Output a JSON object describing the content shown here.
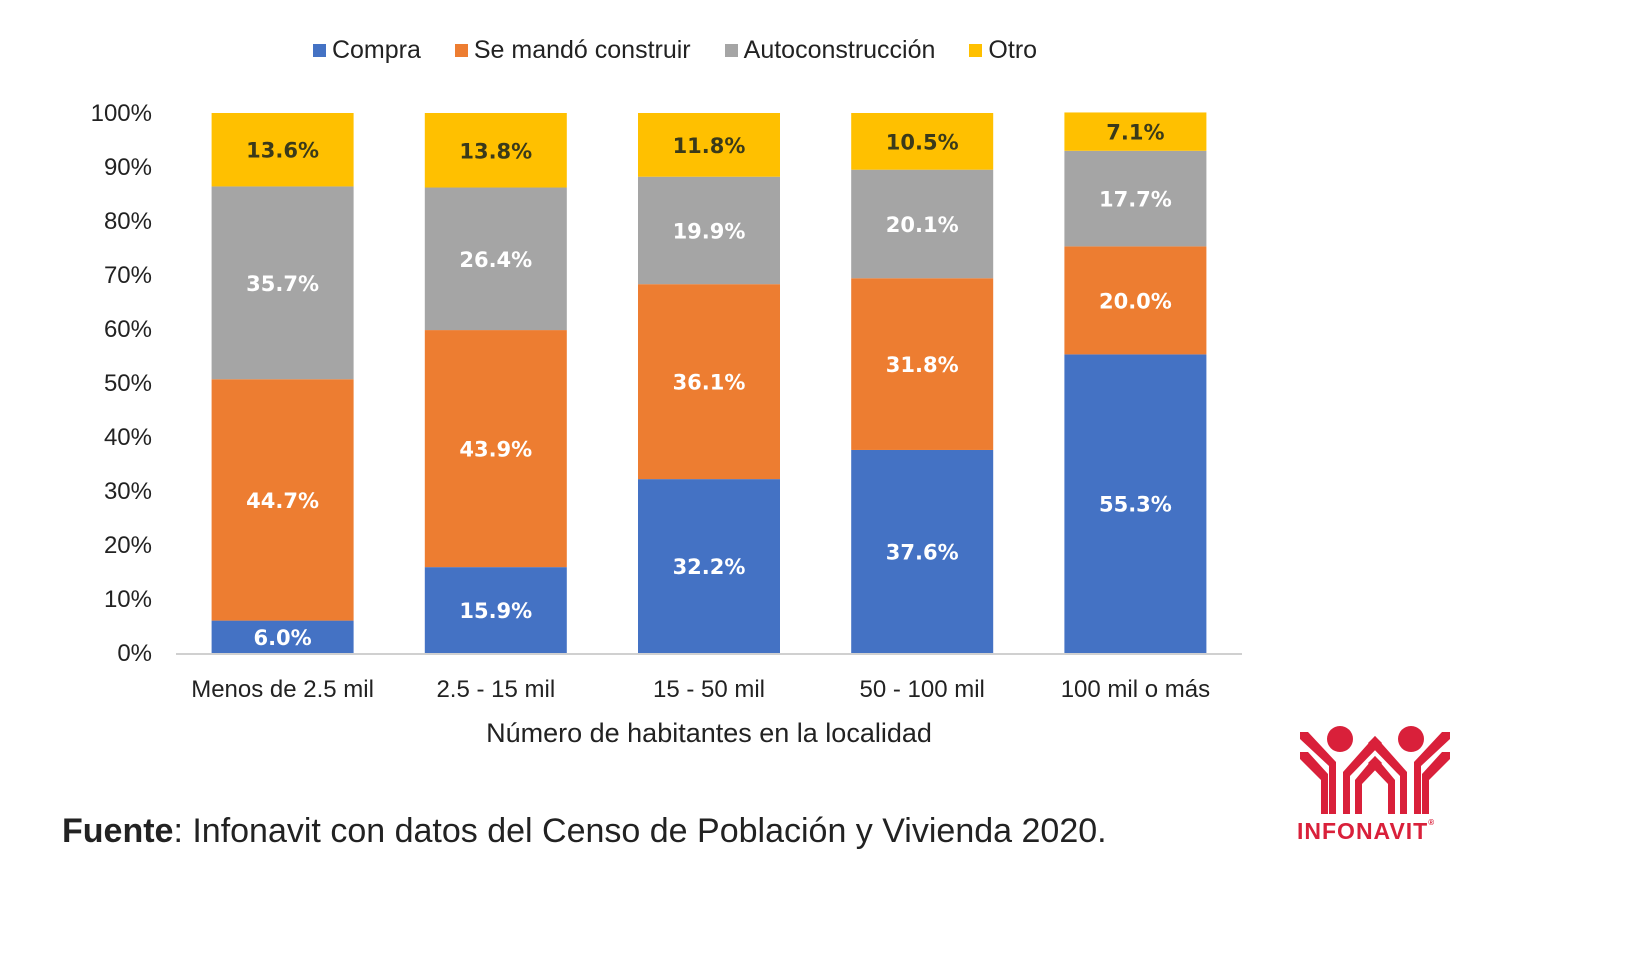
{
  "chart_data": {
    "type": "bar",
    "stacked": true,
    "title": "",
    "xlabel": "Número de habitantes en la localidad",
    "ylabel": "",
    "ylim": [
      0,
      100
    ],
    "yticks": [
      "0%",
      "10%",
      "20%",
      "30%",
      "40%",
      "50%",
      "60%",
      "70%",
      "80%",
      "90%",
      "100%"
    ],
    "categories": [
      "Menos de 2.5 mil",
      "2.5 - 15 mil",
      "15 - 50 mil",
      "50 - 100 mil",
      "100 mil o más"
    ],
    "series": [
      {
        "name": "Compra",
        "color": "#4472c4",
        "label_color": "#ffffff",
        "values": [
          6.0,
          15.9,
          32.2,
          37.6,
          55.3
        ]
      },
      {
        "name": "Se mandó construir",
        "color": "#ed7d31",
        "label_color": "#ffffff",
        "values": [
          44.7,
          43.9,
          36.1,
          31.8,
          20.0
        ]
      },
      {
        "name": "Autoconstrucción",
        "color": "#a5a5a5",
        "label_color": "#ffffff",
        "values": [
          35.7,
          26.4,
          19.9,
          20.1,
          17.7
        ]
      },
      {
        "name": "Otro",
        "color": "#ffc000",
        "label_color": "#3a3a1a",
        "values": [
          13.6,
          13.8,
          11.8,
          10.5,
          7.1
        ]
      }
    ],
    "legend_position": "top",
    "grid": false,
    "data_label_format": "{v}%"
  },
  "footer": {
    "source_bold": "Fuente",
    "source_text": ": Infonavit con datos del Censo de Población y Vivienda 2020."
  },
  "logo": {
    "text": "INFONAVIT",
    "reg": "®",
    "color": "#d9203a"
  }
}
